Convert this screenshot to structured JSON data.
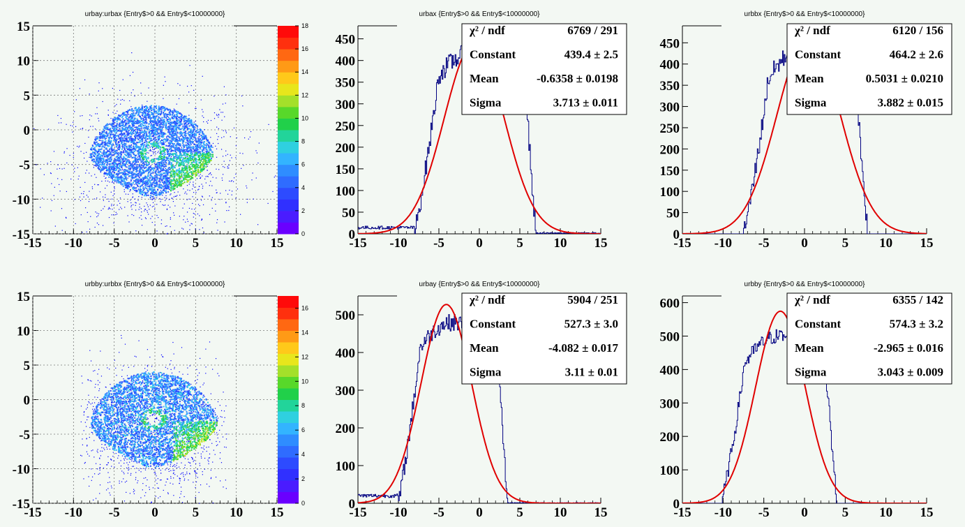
{
  "colors": {
    "background": "#f3f8f3",
    "hist": "#000080",
    "fit": "#e00000",
    "point": "#0000ff",
    "palette": [
      "#6a00ff",
      "#4a1cff",
      "#3030ff",
      "#2d4bff",
      "#2f6cff",
      "#2f8dff",
      "#33b4ff",
      "#2fd0e0",
      "#22d49a",
      "#21d04a",
      "#58d82a",
      "#a4e02a",
      "#e8e61c",
      "#ffc91a",
      "#ff9a16",
      "#ff6812",
      "#ff300e",
      "#ff0a0a"
    ]
  },
  "panels": [
    {
      "id": "scatter-top",
      "title": "urbay:urbax {Entry$>0 && Entry$<10000000}",
      "type": "heatmap",
      "xlim": [
        -15,
        15
      ],
      "ylim": [
        -15,
        15
      ],
      "xticks": [
        -15,
        -10,
        -5,
        0,
        5,
        10,
        15
      ],
      "yticks": [
        -15,
        -10,
        -5,
        0,
        5,
        10,
        15
      ],
      "zlim": [
        0,
        18
      ],
      "zticks": [
        0,
        2,
        4,
        6,
        8,
        10,
        12,
        14,
        16,
        18
      ],
      "shape": {
        "cx": -0.5,
        "cy": -3.2,
        "rx": 7.6,
        "ry_top": 6.8,
        "ry_bottom": 6.5,
        "bright_edge": "lower-right",
        "hole": [
          -0.3,
          -3.2
        ]
      }
    },
    {
      "id": "hist-urbax",
      "title": "urbax {Entry$>0 && Entry$<10000000}",
      "type": "histogram",
      "xlim": [
        -15,
        15
      ],
      "ylim": [
        0,
        480
      ],
      "xticks": [
        -15,
        -10,
        -5,
        0,
        5,
        10,
        15
      ],
      "yticks": [
        0,
        50,
        100,
        150,
        200,
        250,
        300,
        350,
        400,
        450
      ],
      "fit": {
        "constant": 439.4,
        "mean": -0.6358,
        "sigma": 3.713
      },
      "hist_model": {
        "lo": -8.0,
        "hi": 7.0,
        "plateau_lo": 290,
        "plateau_hi": 420,
        "left_tail": 18,
        "right_tail": 3
      },
      "stats": [
        {
          "label": "χ² / ndf",
          "value": "6769 / 291"
        },
        {
          "label": "Constant",
          "value": "439.4 ± 2.5"
        },
        {
          "label": "Mean",
          "value": "-0.6358 ± 0.0198"
        },
        {
          "label": "Sigma",
          "value": "3.713 ± 0.011"
        }
      ]
    },
    {
      "id": "hist-urbbx",
      "title": "urbbx {Entry$>0 && Entry$<10000000}",
      "type": "histogram",
      "xlim": [
        -15,
        15
      ],
      "ylim": [
        0,
        490
      ],
      "xticks": [
        -15,
        -10,
        -5,
        0,
        5,
        10,
        15
      ],
      "yticks": [
        0,
        50,
        100,
        150,
        200,
        250,
        300,
        350,
        400,
        450
      ],
      "fit": {
        "constant": 464.2,
        "mean": 0.5031,
        "sigma": 3.882
      },
      "hist_model": {
        "lo": -7.5,
        "hi": 7.8,
        "plateau_lo": 260,
        "plateau_hi": 440,
        "left_tail": 0,
        "right_tail": 0
      },
      "stats": [
        {
          "label": "χ² / ndf",
          "value": "6120 / 156"
        },
        {
          "label": "Constant",
          "value": "464.2 ± 2.6"
        },
        {
          "label": "Mean",
          "value": "0.5031 ± 0.0210"
        },
        {
          "label": "Sigma",
          "value": "3.882 ± 0.015"
        }
      ]
    },
    {
      "id": "scatter-bottom",
      "title": "urbby:urbbx {Entry$>0 && Entry$<10000000}",
      "type": "heatmap",
      "xlim": [
        -15,
        15
      ],
      "ylim": [
        -15,
        15
      ],
      "xticks": [
        -15,
        -10,
        -5,
        0,
        5,
        10,
        15
      ],
      "yticks": [
        -15,
        -10,
        -5,
        0,
        5,
        10,
        15
      ],
      "zlim": [
        0,
        17
      ],
      "zticks": [
        0,
        2,
        4,
        6,
        8,
        10,
        12,
        14,
        16
      ],
      "shape": {
        "cx": -0.2,
        "cy": -3.0,
        "rx": 7.8,
        "ry_top": 7.1,
        "ry_bottom": 6.9,
        "bright_edge": "lower-right",
        "hole": [
          -0.2,
          -2.7
        ]
      }
    },
    {
      "id": "hist-urbay",
      "title": "urbay {Entry$>0 && Entry$<10000000}",
      "type": "histogram",
      "xlim": [
        -15,
        15
      ],
      "ylim": [
        0,
        550
      ],
      "xticks": [
        -15,
        -10,
        -5,
        0,
        5,
        10,
        15
      ],
      "yticks": [
        0,
        100,
        200,
        300,
        400,
        500
      ],
      "fit": {
        "constant": 527.3,
        "mean": -4.082,
        "sigma": 3.11
      },
      "hist_model": {
        "lo": -10.0,
        "hi": 3.5,
        "plateau_lo": 320,
        "plateau_hi": 480,
        "left_tail": 25,
        "right_tail": 2
      },
      "stats": [
        {
          "label": "χ² / ndf",
          "value": "5904 / 251"
        },
        {
          "label": "Constant",
          "value": "527.3 ± 3.0"
        },
        {
          "label": "Mean",
          "value": "-4.082 ± 0.017"
        },
        {
          "label": "Sigma",
          "value": "3.11 ± 0.01"
        }
      ]
    },
    {
      "id": "hist-urbby",
      "title": "urbby {Entry$>0 && Entry$<10000000}",
      "type": "histogram",
      "xlim": [
        -15,
        15
      ],
      "ylim": [
        0,
        620
      ],
      "xticks": [
        -15,
        -10,
        -5,
        0,
        5,
        10,
        15
      ],
      "yticks": [
        0,
        100,
        200,
        300,
        400,
        500,
        600
      ],
      "fit": {
        "constant": 574.3,
        "mean": -2.965,
        "sigma": 3.043
      },
      "hist_model": {
        "lo": -10.2,
        "hi": 4.0,
        "plateau_lo": 300,
        "plateau_hi": 500,
        "left_tail": 0,
        "right_tail": 0
      },
      "stats": [
        {
          "label": "χ² / ndf",
          "value": "6355 / 142"
        },
        {
          "label": "Constant",
          "value": "574.3 ± 3.2"
        },
        {
          "label": "Mean",
          "value": "-2.965 ± 0.016"
        },
        {
          "label": "Sigma",
          "value": "3.043 ± 0.009"
        }
      ]
    }
  ],
  "chart_data": [
    {
      "type": "heatmap",
      "title": "urbay:urbax {Entry$>0 && Entry$<10000000}",
      "xlim": [
        -15,
        15
      ],
      "ylim": [
        -15,
        15
      ],
      "zlim": [
        0,
        18
      ]
    },
    {
      "type": "bar",
      "title": "urbax {Entry$>0 && Entry$<10000000}",
      "xlim": [
        -15,
        15
      ],
      "ylim": [
        0,
        480
      ],
      "fit": {
        "function": "gaus",
        "constant": 439.4,
        "mean": -0.6358,
        "sigma": 3.713,
        "chi2": 6769,
        "ndf": 291
      }
    },
    {
      "type": "bar",
      "title": "urbbx {Entry$>0 && Entry$<10000000}",
      "xlim": [
        -15,
        15
      ],
      "ylim": [
        0,
        490
      ],
      "fit": {
        "function": "gaus",
        "constant": 464.2,
        "mean": 0.5031,
        "sigma": 3.882,
        "chi2": 6120,
        "ndf": 156
      }
    },
    {
      "type": "heatmap",
      "title": "urbby:urbbx {Entry$>0 && Entry$<10000000}",
      "xlim": [
        -15,
        15
      ],
      "ylim": [
        -15,
        15
      ],
      "zlim": [
        0,
        17
      ]
    },
    {
      "type": "bar",
      "title": "urbay {Entry$>0 && Entry$<10000000}",
      "xlim": [
        -15,
        15
      ],
      "ylim": [
        0,
        550
      ],
      "fit": {
        "function": "gaus",
        "constant": 527.3,
        "mean": -4.082,
        "sigma": 3.11,
        "chi2": 5904,
        "ndf": 251
      }
    },
    {
      "type": "bar",
      "title": "urbby {Entry$>0 && Entry$<10000000}",
      "xlim": [
        -15,
        15
      ],
      "ylim": [
        0,
        620
      ],
      "fit": {
        "function": "gaus",
        "constant": 574.3,
        "mean": -2.965,
        "sigma": 3.043,
        "chi2": 6355,
        "ndf": 142
      }
    }
  ]
}
